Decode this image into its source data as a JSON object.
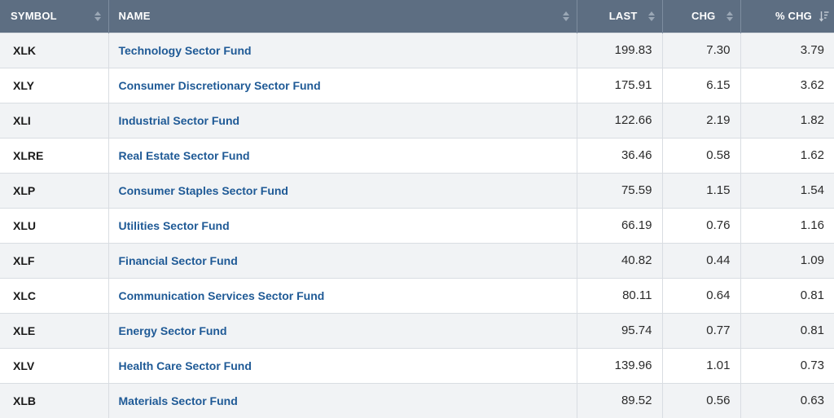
{
  "columns": {
    "symbol": "SYMBOL",
    "name": "NAME",
    "last": "LAST",
    "chg": "CHG",
    "pct_chg": "% CHG"
  },
  "sort": {
    "column": "pct_chg",
    "direction": "descending"
  },
  "colors": {
    "header_bg": "#5d6e82",
    "link": "#1f5a96",
    "row_shade": "#f1f3f5"
  },
  "rows": [
    {
      "symbol": "XLK",
      "name": "Technology Sector Fund",
      "last": "199.83",
      "chg": "7.30",
      "pct_chg": "3.79"
    },
    {
      "symbol": "XLY",
      "name": "Consumer Discretionary Sector Fund",
      "last": "175.91",
      "chg": "6.15",
      "pct_chg": "3.62"
    },
    {
      "symbol": "XLI",
      "name": "Industrial Sector Fund",
      "last": "122.66",
      "chg": "2.19",
      "pct_chg": "1.82"
    },
    {
      "symbol": "XLRE",
      "name": "Real Estate Sector Fund",
      "last": "36.46",
      "chg": "0.58",
      "pct_chg": "1.62"
    },
    {
      "symbol": "XLP",
      "name": "Consumer Staples Sector Fund",
      "last": "75.59",
      "chg": "1.15",
      "pct_chg": "1.54"
    },
    {
      "symbol": "XLU",
      "name": "Utilities Sector Fund",
      "last": "66.19",
      "chg": "0.76",
      "pct_chg": "1.16"
    },
    {
      "symbol": "XLF",
      "name": "Financial Sector Fund",
      "last": "40.82",
      "chg": "0.44",
      "pct_chg": "1.09"
    },
    {
      "symbol": "XLC",
      "name": "Communication Services Sector Fund",
      "last": "80.11",
      "chg": "0.64",
      "pct_chg": "0.81"
    },
    {
      "symbol": "XLE",
      "name": "Energy Sector Fund",
      "last": "95.74",
      "chg": "0.77",
      "pct_chg": "0.81"
    },
    {
      "symbol": "XLV",
      "name": "Health Care Sector Fund",
      "last": "139.96",
      "chg": "1.01",
      "pct_chg": "0.73"
    },
    {
      "symbol": "XLB",
      "name": "Materials Sector Fund",
      "last": "89.52",
      "chg": "0.56",
      "pct_chg": "0.63"
    }
  ]
}
